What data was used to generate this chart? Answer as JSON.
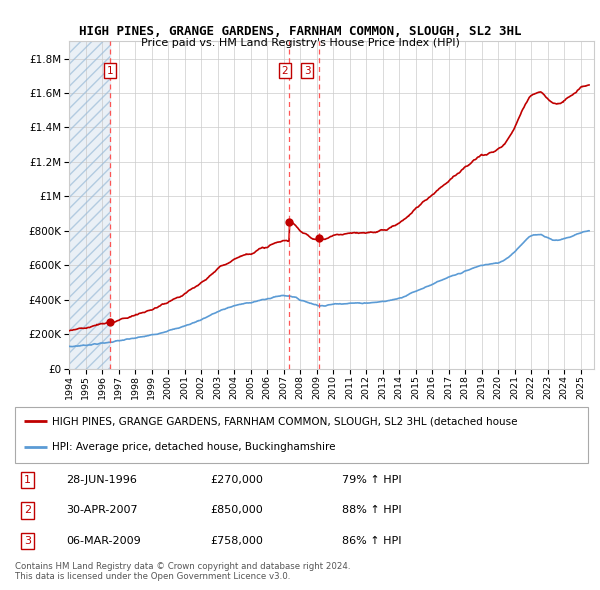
{
  "title": "HIGH PINES, GRANGE GARDENS, FARNHAM COMMON, SLOUGH, SL2 3HL",
  "subtitle": "Price paid vs. HM Land Registry's House Price Index (HPI)",
  "ylim": [
    0,
    1900000
  ],
  "yticks": [
    0,
    200000,
    400000,
    600000,
    800000,
    1000000,
    1200000,
    1400000,
    1600000,
    1800000
  ],
  "ytick_labels": [
    "£0",
    "£200K",
    "£400K",
    "£600K",
    "£800K",
    "£1M",
    "£1.2M",
    "£1.4M",
    "£1.6M",
    "£1.8M"
  ],
  "hpi_color": "#5b9bd5",
  "price_color": "#c00000",
  "sale_color": "#c00000",
  "sale_dates": [
    1996.5,
    2007.33,
    2009.17
  ],
  "sale_prices": [
    270000,
    850000,
    758000
  ],
  "legend_line1": "HIGH PINES, GRANGE GARDENS, FARNHAM COMMON, SLOUGH, SL2 3HL (detached house",
  "legend_line2": "HPI: Average price, detached house, Buckinghamshire",
  "footer": "Contains HM Land Registry data © Crown copyright and database right 2024.\nThis data is licensed under the Open Government Licence v3.0.",
  "table_rows": [
    [
      "1",
      "28-JUN-1996",
      "£270,000",
      "79% ↑ HPI"
    ],
    [
      "2",
      "30-APR-2007",
      "£850,000",
      "88% ↑ HPI"
    ],
    [
      "3",
      "06-MAR-2009",
      "£758,000",
      "86% ↑ HPI"
    ]
  ],
  "xmin": 1994,
  "xmax": 2025.8,
  "hatch_end": 1996.5
}
